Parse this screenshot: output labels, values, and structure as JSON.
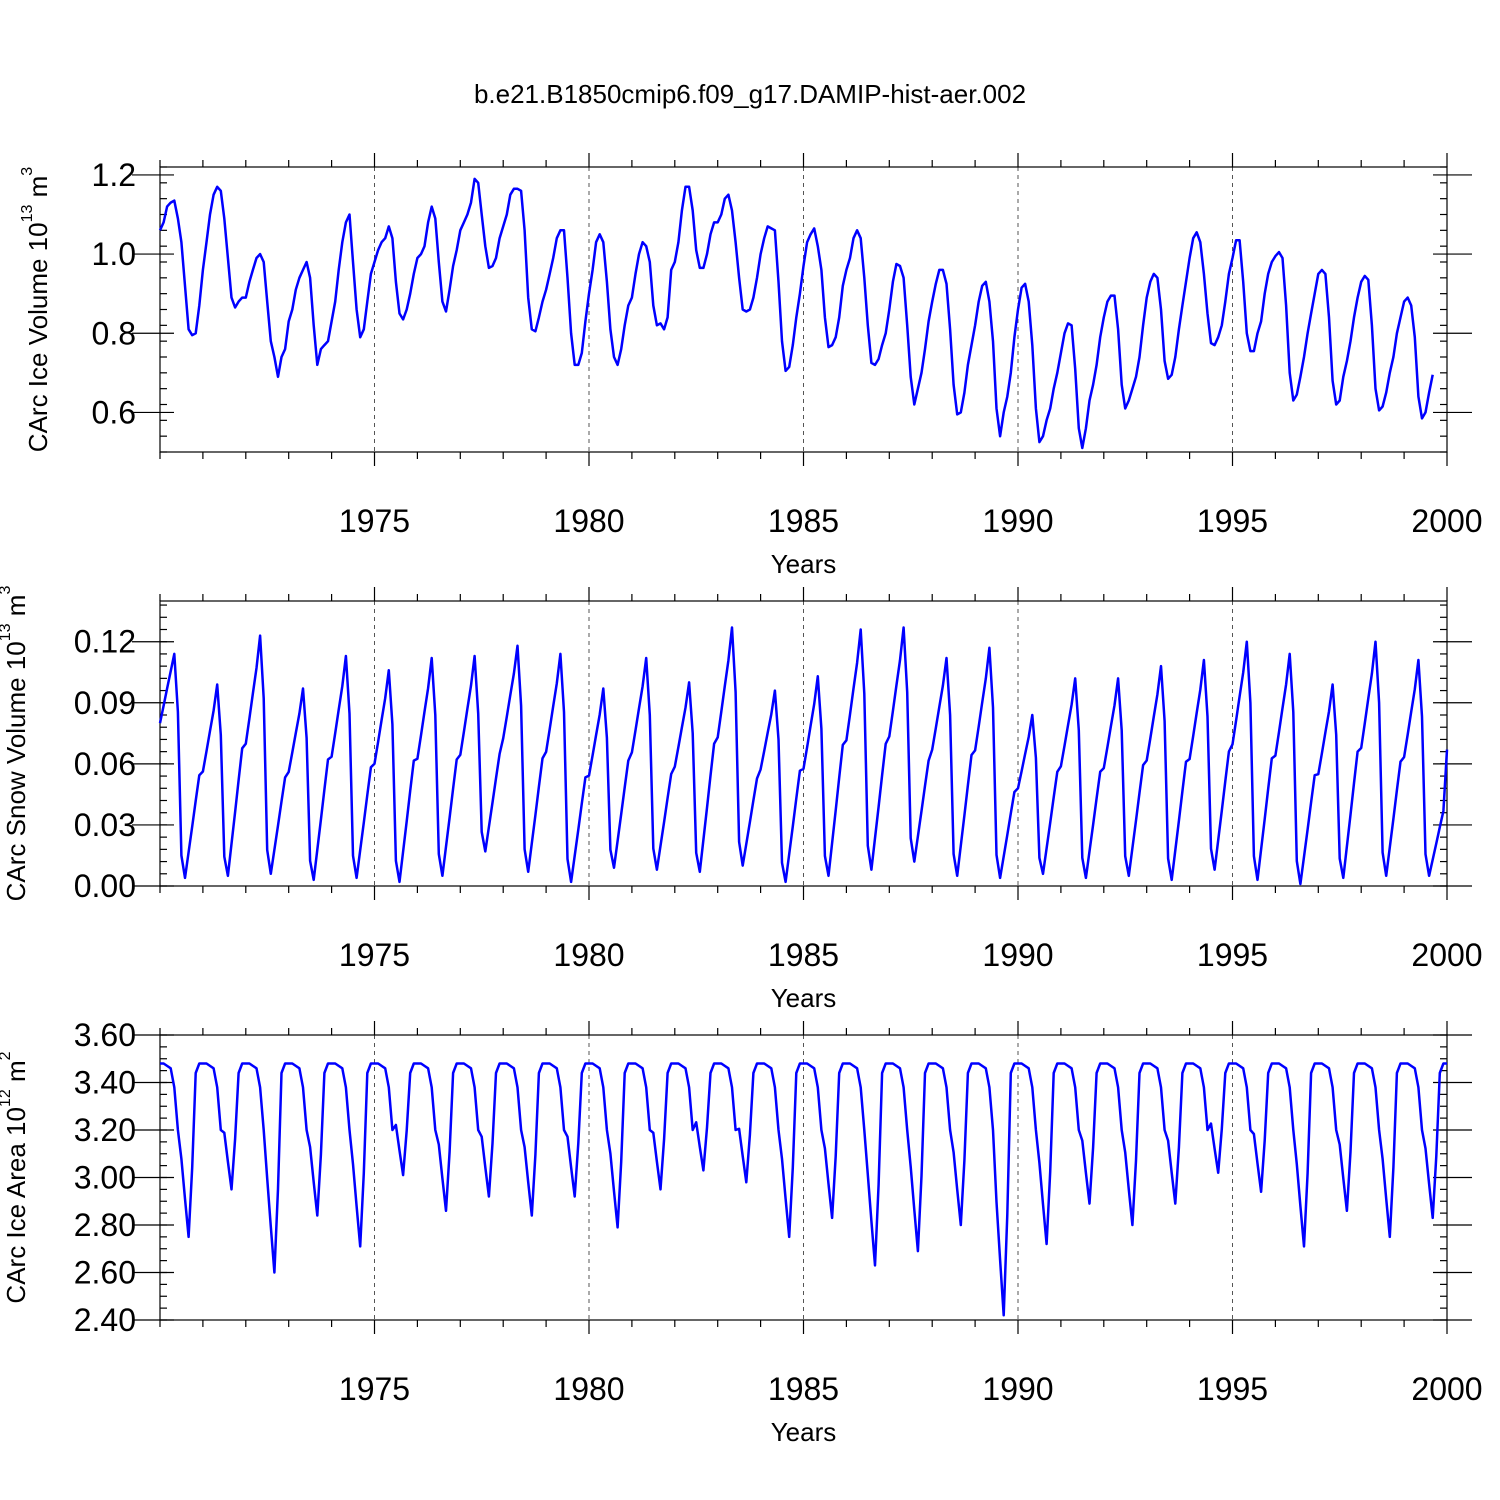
{
  "title": "b.e21.B1850cmip6.f09_g17.DAMIP-hist-aer.002",
  "series_color": "#0000ff",
  "chart_data": [
    {
      "type": "line",
      "name": "ice-volume",
      "ylabel": "CArc Ice Volume 10",
      "ylabel_exp": "13",
      "ylabel_unit": " m",
      "ylabel_unit_exp": "3",
      "xlabel": "Years",
      "xlim": [
        1970.0,
        2000.0
      ],
      "ylim": [
        0.5,
        1.22
      ],
      "xticks": [
        1975,
        1980,
        1985,
        1990,
        1995,
        2000
      ],
      "yticks": [
        0.6,
        0.8,
        1.0,
        1.2
      ],
      "ytick_labels": [
        "0.6",
        "0.8",
        "1.0",
        "1.2"
      ],
      "ytick_minor": 0.04,
      "x_start": 1970.0,
      "x_step": 0.0833333,
      "values": [
        1.06,
        1.08,
        1.12,
        1.13,
        1.135,
        1.09,
        1.03,
        0.92,
        0.81,
        0.795,
        0.8,
        0.87,
        0.96,
        1.03,
        1.1,
        1.15,
        1.17,
        1.16,
        1.09,
        0.99,
        0.89,
        0.865,
        0.88,
        0.89,
        0.89,
        0.93,
        0.96,
        0.99,
        1.0,
        0.98,
        0.88,
        0.78,
        0.74,
        0.69,
        0.74,
        0.76,
        0.83,
        0.86,
        0.91,
        0.94,
        0.96,
        0.98,
        0.94,
        0.82,
        0.72,
        0.76,
        0.77,
        0.78,
        0.83,
        0.88,
        0.96,
        1.03,
        1.08,
        1.1,
        0.98,
        0.86,
        0.79,
        0.81,
        0.88,
        0.95,
        0.98,
        1.01,
        1.03,
        1.04,
        1.07,
        1.04,
        0.93,
        0.85,
        0.835,
        0.86,
        0.9,
        0.95,
        0.99,
        1.0,
        1.02,
        1.08,
        1.12,
        1.09,
        0.98,
        0.88,
        0.855,
        0.91,
        0.97,
        1.01,
        1.06,
        1.08,
        1.1,
        1.13,
        1.19,
        1.18,
        1.1,
        1.02,
        0.965,
        0.97,
        0.99,
        1.04,
        1.07,
        1.1,
        1.15,
        1.165,
        1.165,
        1.16,
        1.06,
        0.89,
        0.81,
        0.805,
        0.84,
        0.88,
        0.91,
        0.95,
        0.99,
        1.04,
        1.06,
        1.06,
        0.94,
        0.8,
        0.72,
        0.72,
        0.75,
        0.83,
        0.9,
        0.96,
        1.03,
        1.05,
        1.03,
        0.93,
        0.81,
        0.74,
        0.72,
        0.76,
        0.82,
        0.87,
        0.89,
        0.95,
        1.0,
        1.03,
        1.02,
        0.98,
        0.87,
        0.82,
        0.825,
        0.81,
        0.84,
        0.96,
        0.98,
        1.03,
        1.11,
        1.17,
        1.17,
        1.11,
        1.01,
        0.965,
        0.965,
        1.0,
        1.05,
        1.08,
        1.08,
        1.1,
        1.14,
        1.15,
        1.11,
        1.03,
        0.94,
        0.86,
        0.855,
        0.86,
        0.89,
        0.94,
        1.0,
        1.04,
        1.07,
        1.065,
        1.06,
        0.93,
        0.78,
        0.705,
        0.715,
        0.77,
        0.84,
        0.9,
        0.97,
        1.03,
        1.05,
        1.065,
        1.02,
        0.96,
        0.84,
        0.765,
        0.77,
        0.79,
        0.84,
        0.92,
        0.96,
        0.99,
        1.04,
        1.06,
        1.04,
        0.94,
        0.82,
        0.725,
        0.72,
        0.735,
        0.77,
        0.8,
        0.86,
        0.93,
        0.975,
        0.97,
        0.94,
        0.82,
        0.69,
        0.62,
        0.66,
        0.7,
        0.76,
        0.83,
        0.88,
        0.925,
        0.96,
        0.96,
        0.925,
        0.81,
        0.67,
        0.595,
        0.6,
        0.65,
        0.72,
        0.77,
        0.82,
        0.88,
        0.92,
        0.93,
        0.88,
        0.78,
        0.61,
        0.54,
        0.6,
        0.64,
        0.7,
        0.79,
        0.86,
        0.915,
        0.925,
        0.88,
        0.77,
        0.61,
        0.525,
        0.54,
        0.58,
        0.61,
        0.66,
        0.7,
        0.75,
        0.8,
        0.825,
        0.82,
        0.71,
        0.56,
        0.51,
        0.56,
        0.63,
        0.67,
        0.72,
        0.79,
        0.84,
        0.88,
        0.895,
        0.895,
        0.81,
        0.67,
        0.61,
        0.63,
        0.66,
        0.69,
        0.74,
        0.82,
        0.89,
        0.93,
        0.95,
        0.94,
        0.86,
        0.73,
        0.685,
        0.695,
        0.74,
        0.81,
        0.87,
        0.93,
        0.99,
        1.04,
        1.055,
        1.03,
        0.95,
        0.85,
        0.775,
        0.77,
        0.79,
        0.82,
        0.88,
        0.95,
        0.99,
        1.035,
        1.035,
        0.93,
        0.8,
        0.755,
        0.755,
        0.8,
        0.83,
        0.9,
        0.95,
        0.98,
        0.995,
        1.005,
        0.99,
        0.87,
        0.7,
        0.63,
        0.645,
        0.69,
        0.74,
        0.8,
        0.85,
        0.9,
        0.95,
        0.96,
        0.95,
        0.84,
        0.68,
        0.62,
        0.63,
        0.69,
        0.73,
        0.78,
        0.84,
        0.89,
        0.93,
        0.945,
        0.935,
        0.82,
        0.66,
        0.605,
        0.615,
        0.65,
        0.7,
        0.74,
        0.8,
        0.84,
        0.88,
        0.89,
        0.87,
        0.79,
        0.64,
        0.585,
        0.6,
        0.65,
        0.695
      ]
    },
    {
      "type": "line",
      "name": "snow-volume",
      "ylabel": "CArc Snow Volume 10",
      "ylabel_exp": "13",
      "ylabel_unit": " m",
      "ylabel_unit_exp": "3",
      "xlabel": "Years",
      "xlim": [
        1970.0,
        2000.0
      ],
      "ylim": [
        0.0,
        0.14
      ],
      "xticks": [
        1975,
        1980,
        1985,
        1990,
        1995,
        2000
      ],
      "yticks": [
        0.0,
        0.03,
        0.06,
        0.09,
        0.12
      ],
      "ytick_labels": [
        "0.00",
        "0.03",
        "0.06",
        "0.09",
        "0.12"
      ],
      "ytick_minor": 0.006,
      "x_start": 1970.0,
      "x_step": 0.0833333,
      "peaks": [
        0.114,
        0.099,
        0.123,
        0.097,
        0.113,
        0.106,
        0.112,
        0.113,
        0.118,
        0.114,
        0.097,
        0.112,
        0.1,
        0.127,
        0.096,
        0.103,
        0.126,
        0.127,
        0.112,
        0.117,
        0.084,
        0.102,
        0.102,
        0.108,
        0.111,
        0.12,
        0.114,
        0.099,
        0.12,
        0.111
      ],
      "troughs": [
        0.004,
        0.005,
        0.006,
        0.003,
        0.004,
        0.002,
        0.005,
        0.017,
        0.007,
        0.002,
        0.009,
        0.008,
        0.007,
        0.01,
        0.002,
        0.005,
        0.008,
        0.012,
        0.005,
        0.004,
        0.006,
        0.004,
        0.005,
        0.003,
        0.008,
        0.003,
        0.001,
        0.004,
        0.005,
        0.005
      ],
      "start_value": 0.08,
      "end_value": 0.067
    },
    {
      "type": "line",
      "name": "ice-area",
      "ylabel": "CArc Ice Area 10",
      "ylabel_exp": "12",
      "ylabel_unit": " m",
      "ylabel_unit_exp": "2",
      "xlabel": "Years",
      "xlim": [
        1970.0,
        2000.0
      ],
      "ylim": [
        2.4,
        3.6
      ],
      "xticks": [
        1975,
        1980,
        1985,
        1990,
        1995,
        2000
      ],
      "yticks": [
        2.4,
        2.6,
        2.8,
        3.0,
        3.2,
        3.4,
        3.6
      ],
      "ytick_labels": [
        "2.40",
        "2.60",
        "2.80",
        "3.00",
        "3.20",
        "3.40",
        "3.60"
      ],
      "ytick_minor": 0.05,
      "x_start": 1970.0,
      "x_step": 0.0833333,
      "max_value": 3.48,
      "minima": [
        2.75,
        2.95,
        2.6,
        2.84,
        2.71,
        3.01,
        2.86,
        2.92,
        2.84,
        2.92,
        2.79,
        2.95,
        3.03,
        2.98,
        2.75,
        2.83,
        2.63,
        2.69,
        2.8,
        2.42,
        2.72,
        2.89,
        2.8,
        2.89,
        3.02,
        2.94,
        2.71,
        2.86,
        2.75,
        2.83
      ]
    }
  ],
  "xtick_labels": [
    "1975",
    "1980",
    "1985",
    "1990",
    "1995",
    "2000"
  ]
}
